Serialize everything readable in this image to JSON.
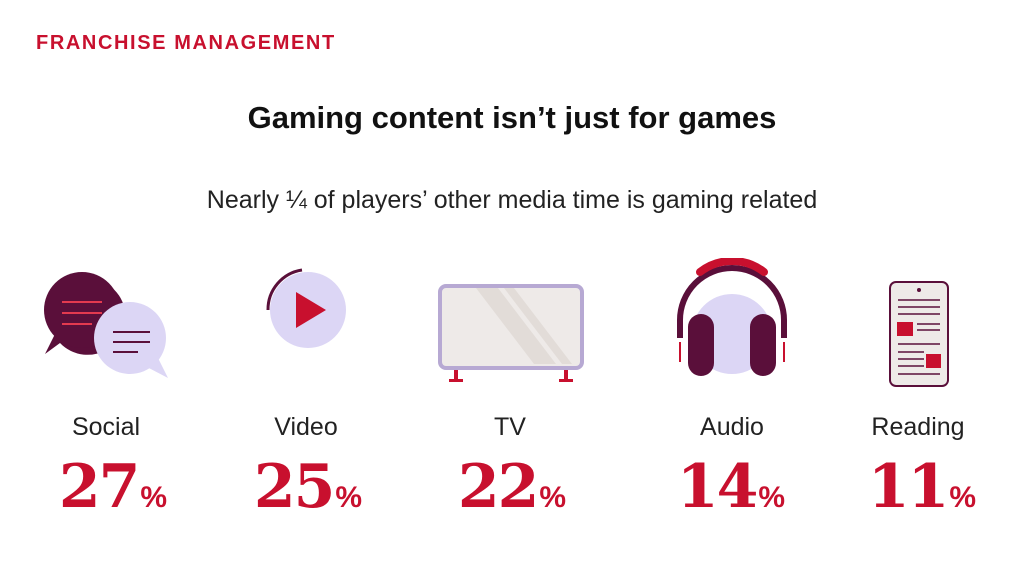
{
  "header": {
    "section_label": "FRANCHISE MANAGEMENT",
    "title": "Gaming content isn’t just for games",
    "subtitle": "Nearly ¼ of players’ other media time is gaming related"
  },
  "colors": {
    "accent": "#c8102e",
    "dark_plum": "#5a0f3a",
    "lavender": "#dcd6f5",
    "light_gray": "#eeeae8"
  },
  "categories": [
    {
      "icon": "chat-bubbles-icon",
      "label": "Social",
      "value": "27",
      "unit": "%"
    },
    {
      "icon": "video-play-icon",
      "label": "Video",
      "value": "25",
      "unit": "%"
    },
    {
      "icon": "tv-icon",
      "label": "TV",
      "value": "22",
      "unit": "%"
    },
    {
      "icon": "headphones-icon",
      "label": "Audio",
      "value": "14",
      "unit": "%"
    },
    {
      "icon": "e-reader-icon",
      "label": "Reading",
      "value": "11",
      "unit": "%"
    }
  ]
}
